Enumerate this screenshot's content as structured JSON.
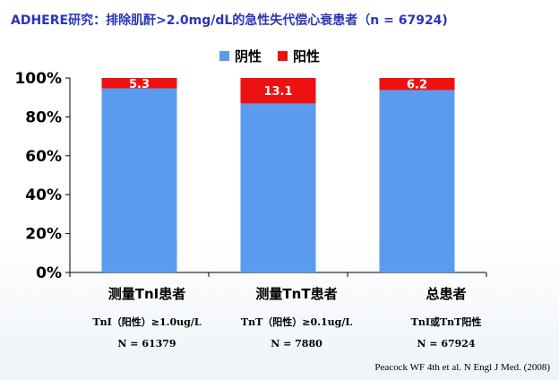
{
  "title": "ADHERE研究：排除肌酐>2.0mg/dL的急性失代偿心衰患者（n = 67924)",
  "source": "Peacock WF 4th et al. N Engl J Med. (2008)",
  "colors": {
    "negative": "#5b9bef",
    "positive": "#ee1111",
    "title": "#2a36b8"
  },
  "chart_data": {
    "type": "bar",
    "stacked": true,
    "categories": [
      "测量TnI患者",
      "测量TnT患者",
      "总患者"
    ],
    "category_criteria": [
      "TnI（阳性）≥1.0ug/L",
      "TnT（阳性）≥0.1ug/L",
      "TnI或TnT阳性"
    ],
    "category_n": [
      "N = 61379",
      "N = 7880",
      "N = 67924"
    ],
    "series": [
      {
        "name": "阴性",
        "values": [
          94.7,
          86.9,
          93.8
        ],
        "color": "#5b9bef"
      },
      {
        "name": "阳性",
        "values": [
          5.3,
          13.1,
          6.2
        ],
        "color": "#ee1111"
      }
    ],
    "data_labels": [
      "5.3",
      "13.1",
      "6.2"
    ],
    "ylim": [
      0,
      100
    ],
    "yticks": [
      "0%",
      "20%",
      "40%",
      "60%",
      "80%",
      "100%"
    ],
    "legend_position": "top-center",
    "grid": false
  }
}
